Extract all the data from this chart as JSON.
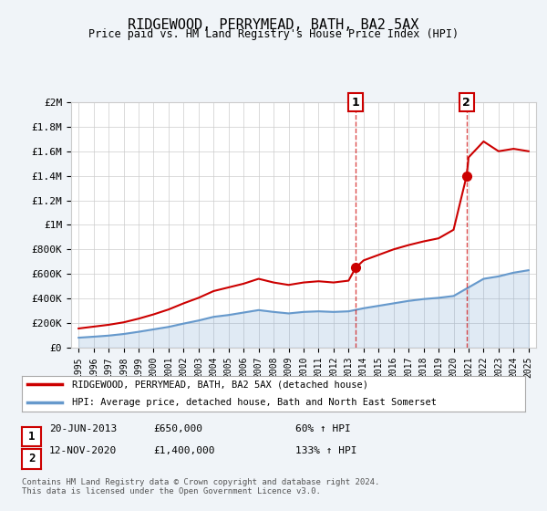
{
  "title": "RIDGEWOOD, PERRYMEAD, BATH, BA2 5AX",
  "subtitle": "Price paid vs. HM Land Registry's House Price Index (HPI)",
  "ylim": [
    0,
    2000000
  ],
  "yticks": [
    0,
    200000,
    400000,
    600000,
    800000,
    1000000,
    1200000,
    1400000,
    1600000,
    1800000,
    2000000
  ],
  "ytick_labels": [
    "£0",
    "£200K",
    "£400K",
    "£600K",
    "£800K",
    "£1M",
    "£1.2M",
    "£1.4M",
    "£1.6M",
    "£1.8M",
    "£2M"
  ],
  "xlim_start": 1995,
  "xlim_end": 2025,
  "sale1_year": 2013.47,
  "sale1_price": 650000,
  "sale1_label": "1",
  "sale1_date": "20-JUN-2013",
  "sale1_hpi": "60% ↑ HPI",
  "sale2_year": 2020.87,
  "sale2_price": 1400000,
  "sale2_label": "2",
  "sale2_date": "12-NOV-2020",
  "sale2_hpi": "133% ↑ HPI",
  "sale_color": "#cc0000",
  "hpi_color": "#6699cc",
  "vline_color": "#cc0000",
  "background_color": "#f0f4f8",
  "plot_bg": "#ffffff",
  "legend_line1": "RIDGEWOOD, PERRYMEAD, BATH, BA2 5AX (detached house)",
  "legend_line2": "HPI: Average price, detached house, Bath and North East Somerset",
  "footer": "Contains HM Land Registry data © Crown copyright and database right 2024.\nThis data is licensed under the Open Government Licence v3.0.",
  "table_row1": [
    "1",
    "20-JUN-2013",
    "£650,000",
    "60% ↑ HPI"
  ],
  "table_row2": [
    "2",
    "12-NOV-2020",
    "£1,400,000",
    "133% ↑ HPI"
  ],
  "hpi_data_x": [
    1995,
    1996,
    1997,
    1998,
    1999,
    2000,
    2001,
    2002,
    2003,
    2004,
    2005,
    2006,
    2007,
    2008,
    2009,
    2010,
    2011,
    2012,
    2013,
    2014,
    2015,
    2016,
    2017,
    2018,
    2019,
    2020,
    2021,
    2022,
    2023,
    2024,
    2025
  ],
  "hpi_data_y": [
    80000,
    88000,
    97000,
    110000,
    128000,
    148000,
    168000,
    195000,
    220000,
    250000,
    265000,
    285000,
    305000,
    290000,
    278000,
    290000,
    295000,
    290000,
    295000,
    320000,
    340000,
    360000,
    380000,
    395000,
    405000,
    420000,
    490000,
    560000,
    580000,
    610000,
    630000
  ],
  "price_data_x": [
    1995,
    1996,
    1997,
    1998,
    1999,
    2000,
    2001,
    2002,
    2003,
    2004,
    2005,
    2006,
    2007,
    2008,
    2009,
    2010,
    2011,
    2012,
    2013,
    2013.47,
    2014,
    2015,
    2016,
    2017,
    2018,
    2019,
    2020,
    2020.87,
    2021,
    2022,
    2023,
    2024,
    2025
  ],
  "price_data_y": [
    155000,
    170000,
    185000,
    205000,
    235000,
    270000,
    310000,
    360000,
    405000,
    460000,
    490000,
    520000,
    560000,
    530000,
    510000,
    530000,
    540000,
    530000,
    545000,
    650000,
    710000,
    755000,
    800000,
    835000,
    865000,
    890000,
    960000,
    1400000,
    1550000,
    1680000,
    1600000,
    1620000,
    1600000
  ]
}
